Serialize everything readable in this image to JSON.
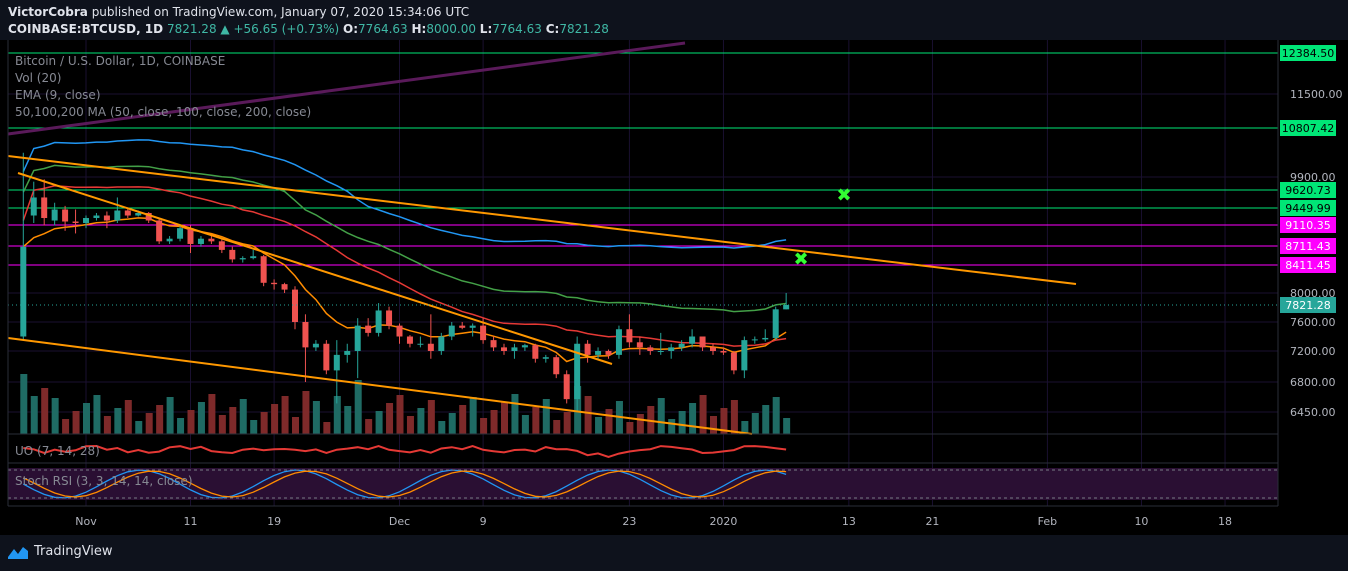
{
  "header": {
    "author": "VictorCobra",
    "published_text": "published on TradingView.com, January 07, 2020 15:34:06 UTC",
    "symbol": "COINBASE:BTCUSD, 1D",
    "last": "7821.28",
    "change": "▲ +56.65 (+0.73%)",
    "o_label": "O:",
    "o": "7764.63",
    "h_label": "H:",
    "h": "8000.00",
    "l_label": "L:",
    "l": "7764.63",
    "c_label": "C:",
    "c": "7821.28"
  },
  "legend": {
    "title": "Bitcoin / U.S. Dollar, 1D, COINBASE",
    "vol": "Vol (20)",
    "ema": "EMA (9, close)",
    "ma": "50,100,200 MA (50, close, 100, close, 200, close)",
    "osc": "UO (7, 14, 28)",
    "rsi": "Stoch RSI (3, 3, 14, 14, close)"
  },
  "footer": {
    "brand": "TradingView"
  },
  "colors": {
    "up": "#26a69a",
    "down": "#ef5350",
    "upVol": "#1f6b64",
    "downVol": "#7e2a2a",
    "ema": "#ff8c00",
    "ma50": "#e53935",
    "ma100": "#43a047",
    "ma200": "#2196f3",
    "trend": "#ff9800",
    "level_green": "#00e676",
    "level_magenta": "#ff00ff",
    "marker": "#33ff33",
    "purple_line": "#5a1a5a",
    "price_tag": "#26a69a"
  },
  "chart_data": {
    "type": "candlestick",
    "y_ticks": [
      {
        "label": "11500.00",
        "value": 11500
      },
      {
        "label": "9900.00",
        "value": 9900
      },
      {
        "label": "8000.00",
        "value": 8000
      },
      {
        "label": "7600.00",
        "value": 7600
      },
      {
        "label": "7200.00",
        "value": 7200
      },
      {
        "label": "6800.00",
        "value": 6800
      },
      {
        "label": "6450.00",
        "value": 6450
      }
    ],
    "x_ticks": [
      {
        "label": "Nov",
        "date": "2019-11-01"
      },
      {
        "label": "11",
        "date": "2019-11-11"
      },
      {
        "label": "19",
        "date": "2019-11-19"
      },
      {
        "label": "Dec",
        "date": "2019-12-01"
      },
      {
        "label": "9",
        "date": "2019-12-09"
      },
      {
        "label": "23",
        "date": "2019-12-23"
      },
      {
        "label": "2020",
        "date": "2020-01-01"
      },
      {
        "label": "13",
        "date": "2020-01-13"
      },
      {
        "label": "21",
        "date": "2020-01-21"
      },
      {
        "label": "Feb",
        "date": "2020-02-01"
      },
      {
        "label": "10",
        "date": "2020-02-10"
      },
      {
        "label": "18",
        "date": "2020-02-18"
      }
    ],
    "levels": [
      {
        "label": "12384.50",
        "value": 12384.5,
        "color": "green"
      },
      {
        "label": "10807.42",
        "value": 10807.42,
        "color": "green"
      },
      {
        "label": "9620.73",
        "value": 9620.73,
        "color": "green"
      },
      {
        "label": "9449.99",
        "value": 9449.99,
        "color": "green"
      },
      {
        "label": "9110.35",
        "value": 9110.35,
        "color": "magenta"
      },
      {
        "label": "8711.43",
        "value": 8711.43,
        "color": "magenta"
      },
      {
        "label": "8411.45",
        "value": 8411.45,
        "color": "magenta"
      }
    ],
    "current_price": {
      "label": "7821.28",
      "value": 7821.28
    },
    "candles": [
      {
        "date": "2019-10-26",
        "o": 7400,
        "h": 10350,
        "l": 7350,
        "c": 8700
      },
      {
        "date": "2019-10-27",
        "o": 9300,
        "h": 9800,
        "l": 9150,
        "c": 9550
      },
      {
        "date": "2019-10-28",
        "o": 9550,
        "h": 9850,
        "l": 9100,
        "c": 9250
      },
      {
        "date": "2019-10-29",
        "o": 9200,
        "h": 9500,
        "l": 9100,
        "c": 9420
      },
      {
        "date": "2019-10-30",
        "o": 9420,
        "h": 9470,
        "l": 9000,
        "c": 9180
      },
      {
        "date": "2019-10-31",
        "o": 9180,
        "h": 9420,
        "l": 8950,
        "c": 9150
      },
      {
        "date": "2019-11-01",
        "o": 9150,
        "h": 9300,
        "l": 9050,
        "c": 9250
      },
      {
        "date": "2019-11-02",
        "o": 9250,
        "h": 9350,
        "l": 9200,
        "c": 9300
      },
      {
        "date": "2019-11-03",
        "o": 9300,
        "h": 9380,
        "l": 9050,
        "c": 9200
      },
      {
        "date": "2019-11-04",
        "o": 9200,
        "h": 9550,
        "l": 9150,
        "c": 9400
      },
      {
        "date": "2019-11-05",
        "o": 9400,
        "h": 9450,
        "l": 9250,
        "c": 9300
      },
      {
        "date": "2019-11-06",
        "o": 9300,
        "h": 9400,
        "l": 9280,
        "c": 9350
      },
      {
        "date": "2019-11-07",
        "o": 9350,
        "h": 9370,
        "l": 9150,
        "c": 9200
      },
      {
        "date": "2019-11-08",
        "o": 9200,
        "h": 9250,
        "l": 8750,
        "c": 8800
      },
      {
        "date": "2019-11-09",
        "o": 8800,
        "h": 8900,
        "l": 8750,
        "c": 8850
      },
      {
        "date": "2019-11-10",
        "o": 8850,
        "h": 9100,
        "l": 8800,
        "c": 9050
      },
      {
        "date": "2019-11-11",
        "o": 9050,
        "h": 9100,
        "l": 8600,
        "c": 8750
      },
      {
        "date": "2019-11-12",
        "o": 8750,
        "h": 8900,
        "l": 8700,
        "c": 8850
      },
      {
        "date": "2019-11-13",
        "o": 8850,
        "h": 8900,
        "l": 8750,
        "c": 8800
      },
      {
        "date": "2019-11-14",
        "o": 8800,
        "h": 8850,
        "l": 8600,
        "c": 8650
      },
      {
        "date": "2019-11-15",
        "o": 8650,
        "h": 8700,
        "l": 8450,
        "c": 8500
      },
      {
        "date": "2019-11-16",
        "o": 8500,
        "h": 8550,
        "l": 8450,
        "c": 8520
      },
      {
        "date": "2019-11-17",
        "o": 8520,
        "h": 8650,
        "l": 8500,
        "c": 8550
      },
      {
        "date": "2019-11-18",
        "o": 8550,
        "h": 8570,
        "l": 8100,
        "c": 8150
      },
      {
        "date": "2019-11-19",
        "o": 8150,
        "h": 8200,
        "l": 8050,
        "c": 8130
      },
      {
        "date": "2019-11-20",
        "o": 8130,
        "h": 8150,
        "l": 8000,
        "c": 8050
      },
      {
        "date": "2019-11-21",
        "o": 8050,
        "h": 8100,
        "l": 7500,
        "c": 7600
      },
      {
        "date": "2019-11-22",
        "o": 7600,
        "h": 7700,
        "l": 6800,
        "c": 7250
      },
      {
        "date": "2019-11-23",
        "o": 7250,
        "h": 7350,
        "l": 7200,
        "c": 7300
      },
      {
        "date": "2019-11-24",
        "o": 7300,
        "h": 7350,
        "l": 6900,
        "c": 6950
      },
      {
        "date": "2019-11-25",
        "o": 6950,
        "h": 7350,
        "l": 6550,
        "c": 7150
      },
      {
        "date": "2019-11-26",
        "o": 7150,
        "h": 7300,
        "l": 7050,
        "c": 7200
      },
      {
        "date": "2019-11-27",
        "o": 7200,
        "h": 7650,
        "l": 6850,
        "c": 7550
      },
      {
        "date": "2019-11-28",
        "o": 7550,
        "h": 7650,
        "l": 7400,
        "c": 7450
      },
      {
        "date": "2019-11-29",
        "o": 7450,
        "h": 7850,
        "l": 7400,
        "c": 7750
      },
      {
        "date": "2019-11-30",
        "o": 7750,
        "h": 7800,
        "l": 7500,
        "c": 7550
      },
      {
        "date": "2019-12-01",
        "o": 7550,
        "h": 7580,
        "l": 7300,
        "c": 7400
      },
      {
        "date": "2019-12-02",
        "o": 7400,
        "h": 7420,
        "l": 7250,
        "c": 7300
      },
      {
        "date": "2019-12-03",
        "o": 7300,
        "h": 7400,
        "l": 7250,
        "c": 7300
      },
      {
        "date": "2019-12-04",
        "o": 7300,
        "h": 7700,
        "l": 7100,
        "c": 7200
      },
      {
        "date": "2019-12-05",
        "o": 7200,
        "h": 7450,
        "l": 7150,
        "c": 7400
      },
      {
        "date": "2019-12-06",
        "o": 7400,
        "h": 7600,
        "l": 7350,
        "c": 7550
      },
      {
        "date": "2019-12-07",
        "o": 7550,
        "h": 7600,
        "l": 7500,
        "c": 7520
      },
      {
        "date": "2019-12-08",
        "o": 7520,
        "h": 7580,
        "l": 7400,
        "c": 7550
      },
      {
        "date": "2019-12-09",
        "o": 7550,
        "h": 7650,
        "l": 7300,
        "c": 7350
      },
      {
        "date": "2019-12-10",
        "o": 7350,
        "h": 7400,
        "l": 7200,
        "c": 7250
      },
      {
        "date": "2019-12-11",
        "o": 7250,
        "h": 7300,
        "l": 7150,
        "c": 7200
      },
      {
        "date": "2019-12-12",
        "o": 7200,
        "h": 7300,
        "l": 7100,
        "c": 7250
      },
      {
        "date": "2019-12-13",
        "o": 7250,
        "h": 7300,
        "l": 7200,
        "c": 7280
      },
      {
        "date": "2019-12-14",
        "o": 7280,
        "h": 7300,
        "l": 7050,
        "c": 7100
      },
      {
        "date": "2019-12-15",
        "o": 7100,
        "h": 7150,
        "l": 7050,
        "c": 7120
      },
      {
        "date": "2019-12-16",
        "o": 7120,
        "h": 7150,
        "l": 6850,
        "c": 6900
      },
      {
        "date": "2019-12-17",
        "o": 6900,
        "h": 6950,
        "l": 6550,
        "c": 6600
      },
      {
        "date": "2019-12-18",
        "o": 6600,
        "h": 7400,
        "l": 6450,
        "c": 7300
      },
      {
        "date": "2019-12-19",
        "o": 7300,
        "h": 7350,
        "l": 7050,
        "c": 7150
      },
      {
        "date": "2019-12-20",
        "o": 7150,
        "h": 7250,
        "l": 7100,
        "c": 7200
      },
      {
        "date": "2019-12-21",
        "o": 7200,
        "h": 7220,
        "l": 7100,
        "c": 7150
      },
      {
        "date": "2019-12-22",
        "o": 7150,
        "h": 7550,
        "l": 7100,
        "c": 7500
      },
      {
        "date": "2019-12-23",
        "o": 7500,
        "h": 7700,
        "l": 7250,
        "c": 7320
      },
      {
        "date": "2019-12-24",
        "o": 7320,
        "h": 7400,
        "l": 7150,
        "c": 7250
      },
      {
        "date": "2019-12-25",
        "o": 7250,
        "h": 7280,
        "l": 7150,
        "c": 7200
      },
      {
        "date": "2019-12-26",
        "o": 7200,
        "h": 7450,
        "l": 7150,
        "c": 7200
      },
      {
        "date": "2019-12-27",
        "o": 7200,
        "h": 7300,
        "l": 7100,
        "c": 7250
      },
      {
        "date": "2019-12-28",
        "o": 7250,
        "h": 7350,
        "l": 7200,
        "c": 7300
      },
      {
        "date": "2019-12-29",
        "o": 7300,
        "h": 7500,
        "l": 7250,
        "c": 7400
      },
      {
        "date": "2019-12-30",
        "o": 7400,
        "h": 7400,
        "l": 7200,
        "c": 7250
      },
      {
        "date": "2019-12-31",
        "o": 7250,
        "h": 7300,
        "l": 7150,
        "c": 7200
      },
      {
        "date": "2020-01-01",
        "o": 7200,
        "h": 7250,
        "l": 7150,
        "c": 7180
      },
      {
        "date": "2020-01-02",
        "o": 7180,
        "h": 7200,
        "l": 6900,
        "c": 6950
      },
      {
        "date": "2020-01-03",
        "o": 6950,
        "h": 7400,
        "l": 6850,
        "c": 7350
      },
      {
        "date": "2020-01-04",
        "o": 7350,
        "h": 7400,
        "l": 7300,
        "c": 7360
      },
      {
        "date": "2020-01-05",
        "o": 7360,
        "h": 7500,
        "l": 7330,
        "c": 7380
      },
      {
        "date": "2020-01-06",
        "o": 7380,
        "h": 7800,
        "l": 7350,
        "c": 7765
      },
      {
        "date": "2020-01-07",
        "o": 7764.63,
        "h": 8000,
        "l": 7764.63,
        "c": 7821.28
      }
    ],
    "xlabel": "",
    "ylabel": "",
    "grid": true
  }
}
